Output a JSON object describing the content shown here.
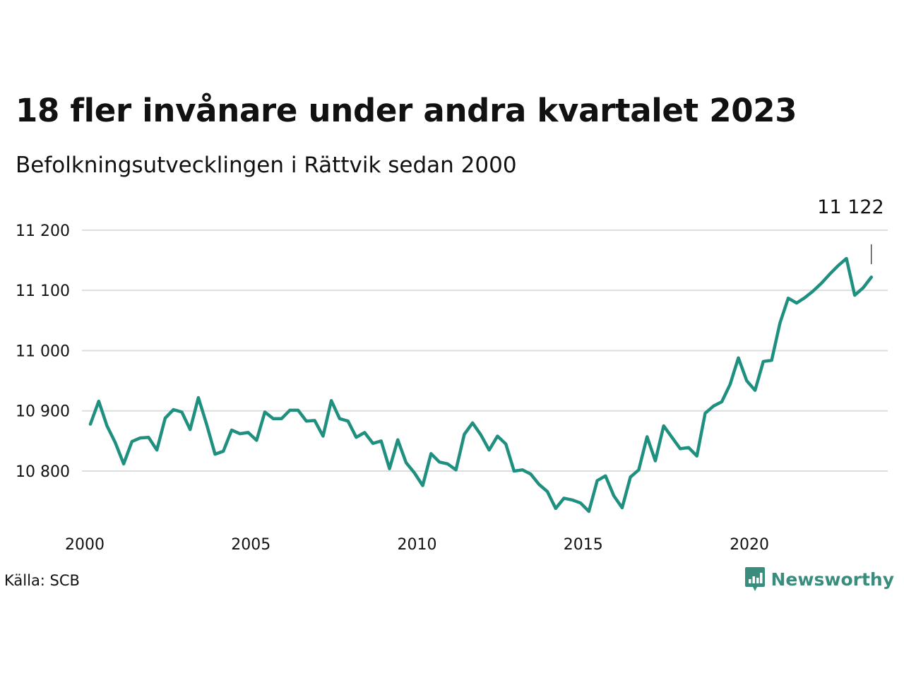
{
  "title": "18 fler invånare under andra kvartalet 2023",
  "subtitle": "Befolkningsutvecklingen i Rättvik sedan 2000",
  "source": "Källa: SCB",
  "brand": {
    "name": "Newsworthy",
    "color": "#3a8c7c"
  },
  "colors": {
    "line": "#1f9080",
    "grid": "#dddddd",
    "text": "#111111"
  },
  "chart_data": {
    "type": "line",
    "title": "18 fler invånare under andra kvartalet 2023",
    "subtitle": "Befolkningsutvecklingen i Rättvik sedan 2000",
    "xlabel": "",
    "ylabel": "",
    "x_start_year": 2000,
    "x_step": 0.25,
    "xlim": [
      2000,
      2023.25
    ],
    "ylim": [
      10700,
      11250
    ],
    "yticks": [
      10800,
      10900,
      11000,
      11100,
      11200
    ],
    "ytick_labels": [
      "10 800",
      "10 900",
      "11 000",
      "11 100",
      "11 200"
    ],
    "xticks": [
      2000,
      2005,
      2010,
      2015,
      2020
    ],
    "xtick_labels": [
      "2000",
      "2005",
      "2010",
      "2015",
      "2020"
    ],
    "grid": true,
    "legend": "none",
    "last_value_label": "11 122",
    "series": [
      {
        "values": [
          10878,
          10916,
          10875,
          10847,
          10812,
          10849,
          10855,
          10856,
          10835,
          10888,
          10902,
          10898,
          10869,
          10922,
          10877,
          10828,
          10833,
          10868,
          10862,
          10864,
          10851,
          10898,
          10887,
          10887,
          10901,
          10901,
          10883,
          10884,
          10858,
          10917,
          10887,
          10883,
          10856,
          10864,
          10846,
          10850,
          10804,
          10852,
          10814,
          10797,
          10776,
          10829,
          10815,
          10812,
          10802,
          10861,
          10880,
          10860,
          10835,
          10858,
          10845,
          10800,
          10802,
          10795,
          10778,
          10766,
          10738,
          10755,
          10752,
          10747,
          10733,
          10784,
          10792,
          10759,
          10739,
          10790,
          10802,
          10857,
          10817,
          10875,
          10856,
          10837,
          10839,
          10825,
          10896,
          10908,
          10915,
          10944,
          10988,
          10950,
          10934,
          10982,
          10984,
          11046,
          11087,
          11079,
          11088,
          11099,
          11112,
          11127,
          11141,
          11153,
          11092,
          11104,
          11122
        ]
      }
    ]
  }
}
